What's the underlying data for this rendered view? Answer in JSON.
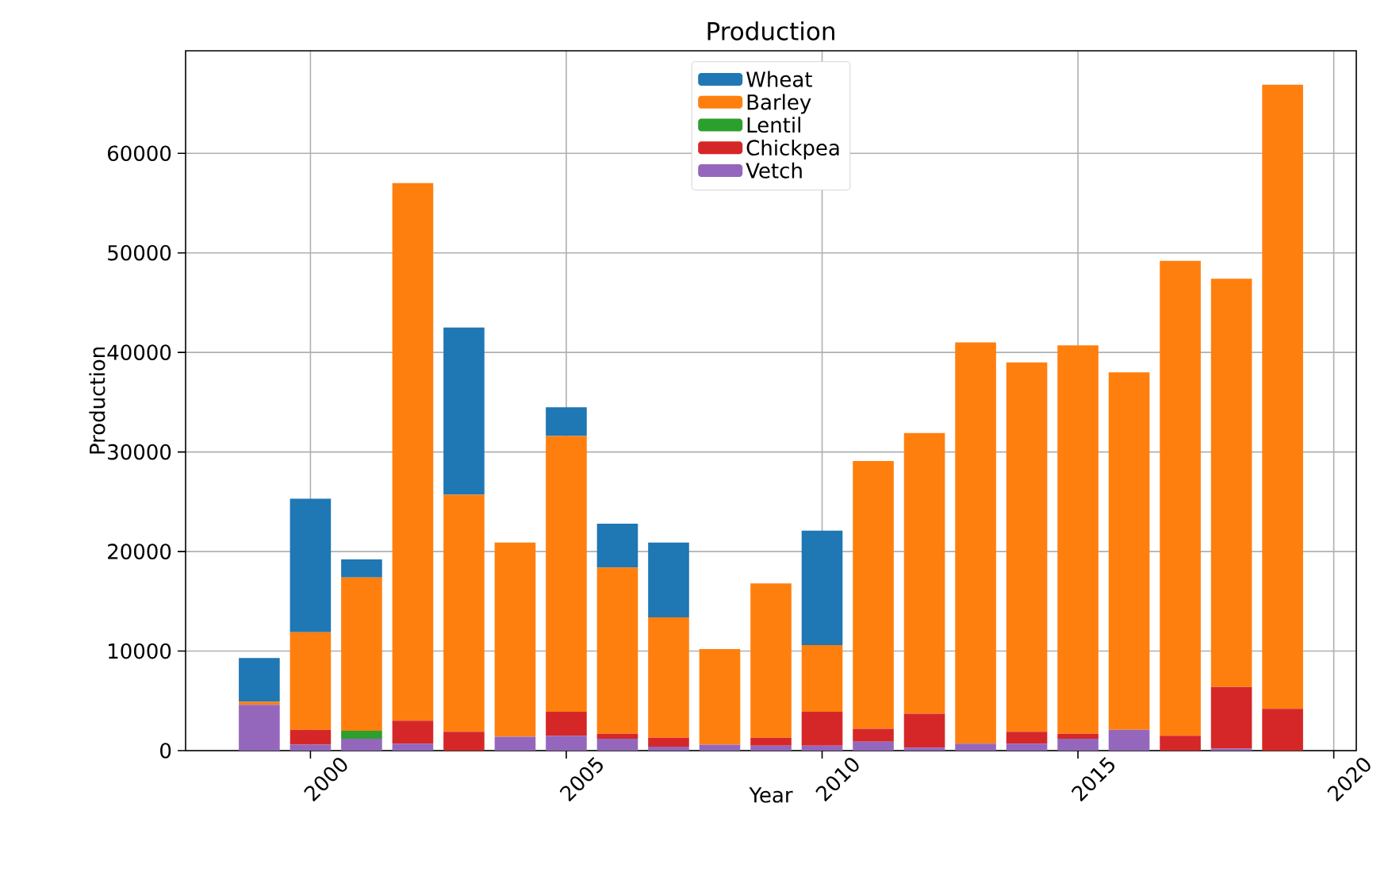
{
  "chart_data": {
    "type": "bar",
    "title": "Production",
    "xlabel": "Year",
    "ylabel": "Production",
    "x": [
      1999,
      2000,
      2001,
      2002,
      2003,
      2004,
      2005,
      2006,
      2007,
      2008,
      2009,
      2010,
      2011,
      2012,
      2013,
      2014,
      2015,
      2016,
      2017,
      2018,
      2019
    ],
    "series": [
      {
        "name": "Vetch",
        "color": "#9467bd",
        "values": [
          4600,
          600,
          1200,
          700,
          null,
          1400,
          1500,
          1200,
          400,
          600,
          500,
          500,
          900,
          300,
          700,
          700,
          1200,
          2100,
          null,
          200,
          null
        ]
      },
      {
        "name": "Chickpea",
        "color": "#d62728",
        "values": [
          null,
          1500,
          null,
          2300,
          1900,
          null,
          2400,
          500,
          900,
          null,
          800,
          3400,
          1300,
          3400,
          null,
          1200,
          500,
          null,
          1500,
          6200,
          4200
        ]
      },
      {
        "name": "Lentil",
        "color": "#2ca02c",
        "values": [
          null,
          null,
          800,
          null,
          null,
          null,
          null,
          null,
          null,
          null,
          null,
          null,
          null,
          null,
          null,
          null,
          null,
          null,
          null,
          null,
          null
        ]
      },
      {
        "name": "Barley",
        "color": "#ff7f0e",
        "values": [
          300,
          9800,
          15400,
          54000,
          23800,
          19500,
          27700,
          16700,
          12100,
          9600,
          15500,
          6700,
          26900,
          28200,
          40300,
          37100,
          39000,
          35900,
          47700,
          41000,
          62700
        ]
      },
      {
        "name": "Wheat",
        "color": "#1f77b4",
        "values": [
          4400,
          13400,
          1800,
          null,
          16800,
          null,
          2900,
          4400,
          7500,
          null,
          null,
          11500,
          null,
          null,
          null,
          null,
          null,
          null,
          null,
          null,
          null
        ]
      }
    ],
    "stacked": true,
    "xlim": [
      1997.56,
      2020.44
    ],
    "xticks": [
      2000,
      2005,
      2010,
      2015,
      2020
    ],
    "ylim": [
      0,
      70300
    ],
    "yticks": [
      0,
      10000,
      20000,
      30000,
      40000,
      50000,
      60000
    ],
    "grid": true,
    "legend": "top"
  }
}
